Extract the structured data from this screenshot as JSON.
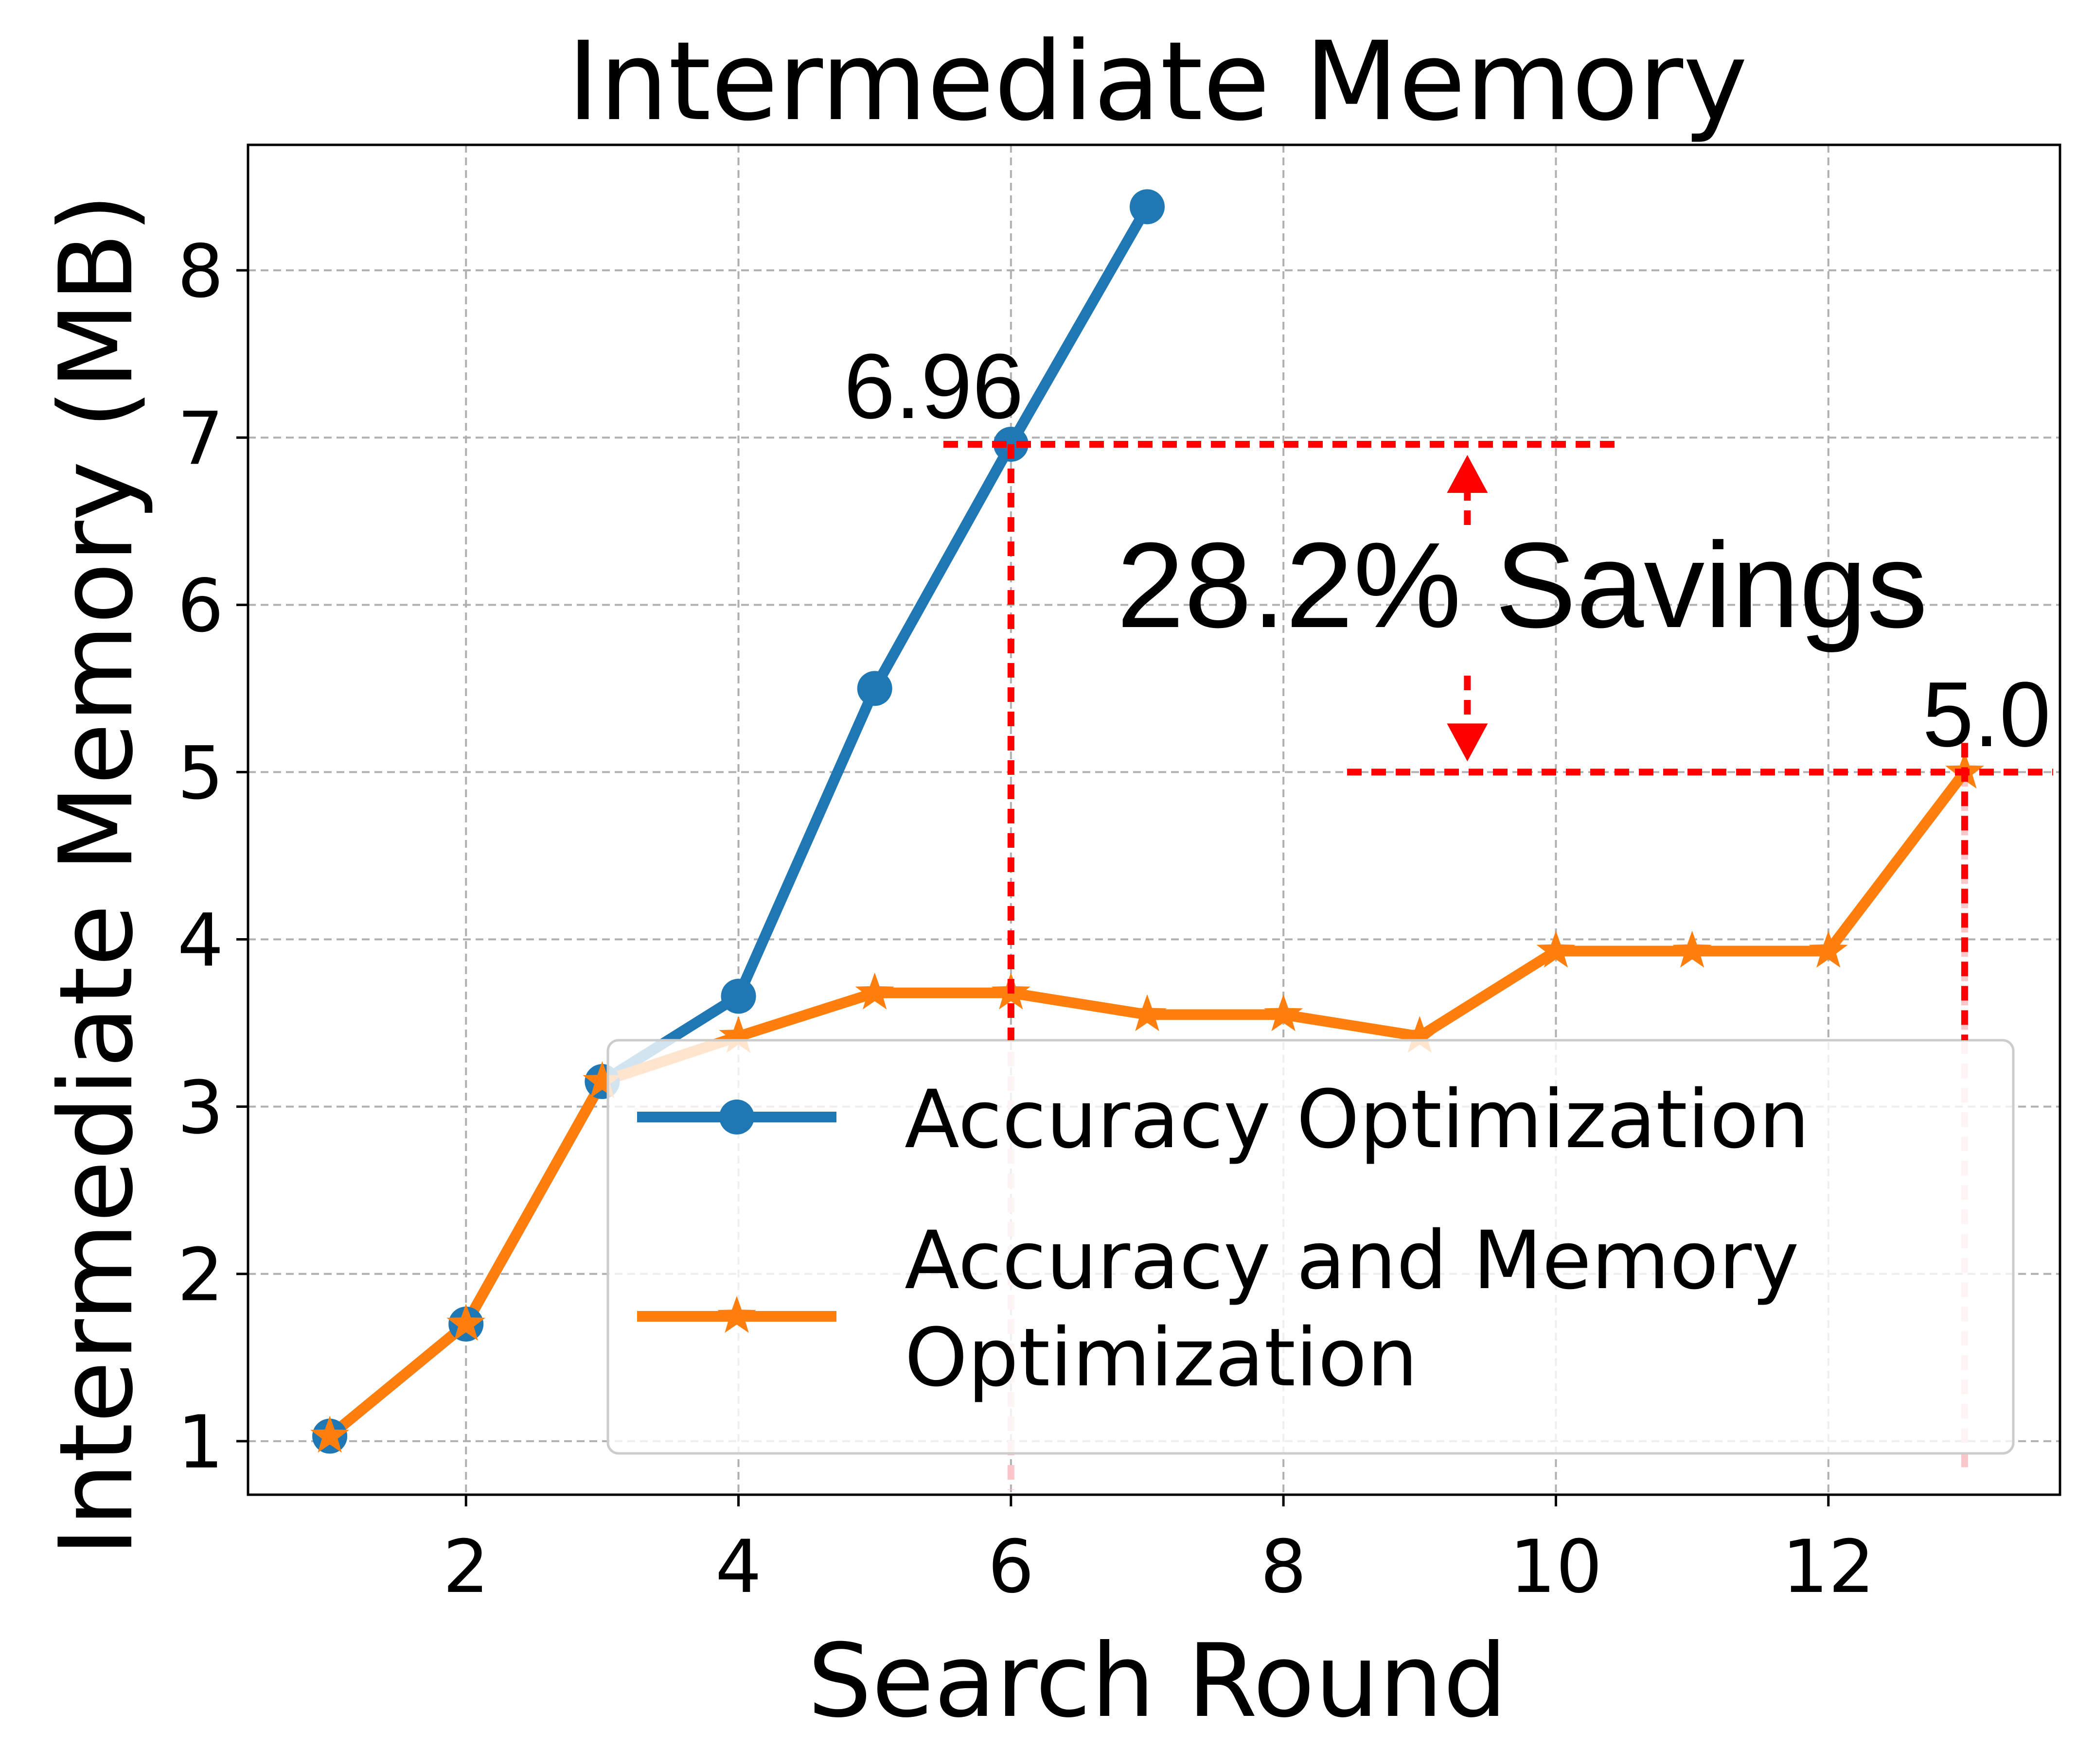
{
  "chart_data": {
    "type": "line",
    "title": "Intermediate Memory",
    "xlabel": "Search Round",
    "ylabel": "Intermediate Memory (MB)",
    "xlim": [
      0.4,
      13.7
    ],
    "ylim": [
      0.68,
      8.75
    ],
    "xticks": [
      2,
      4,
      6,
      8,
      10,
      12
    ],
    "yticks": [
      1,
      2,
      3,
      4,
      5,
      6,
      7,
      8
    ],
    "grid": true,
    "legend_position": "lower-right",
    "series": [
      {
        "name": "Accuracy Optimization",
        "color": "#1f77b4",
        "marker": "circle",
        "x": [
          1,
          2,
          3,
          4,
          5,
          6,
          7
        ],
        "y": [
          1.03,
          1.7,
          3.15,
          3.66,
          5.5,
          6.96,
          8.38
        ]
      },
      {
        "name": "Accuracy and Memory Optimization",
        "legend_lines": [
          "Accuracy and Memory",
          "Optimization"
        ],
        "color": "#ff7f0e",
        "marker": "star",
        "x": [
          1,
          2,
          3,
          4,
          5,
          6,
          7,
          8,
          9,
          10,
          11,
          12,
          13
        ],
        "y": [
          1.03,
          1.7,
          3.15,
          3.42,
          3.68,
          3.68,
          3.55,
          3.55,
          3.42,
          3.93,
          3.93,
          3.93,
          5.0
        ]
      }
    ],
    "annotations": {
      "color": "#ff0000",
      "top_value_label": "6.96",
      "top_value": 6.96,
      "top_round": 6,
      "bottom_value_label": "5.0",
      "bottom_value": 5.0,
      "bottom_round": 13,
      "savings_text": "28.2% Savings",
      "arrow_round": 9.35
    }
  }
}
